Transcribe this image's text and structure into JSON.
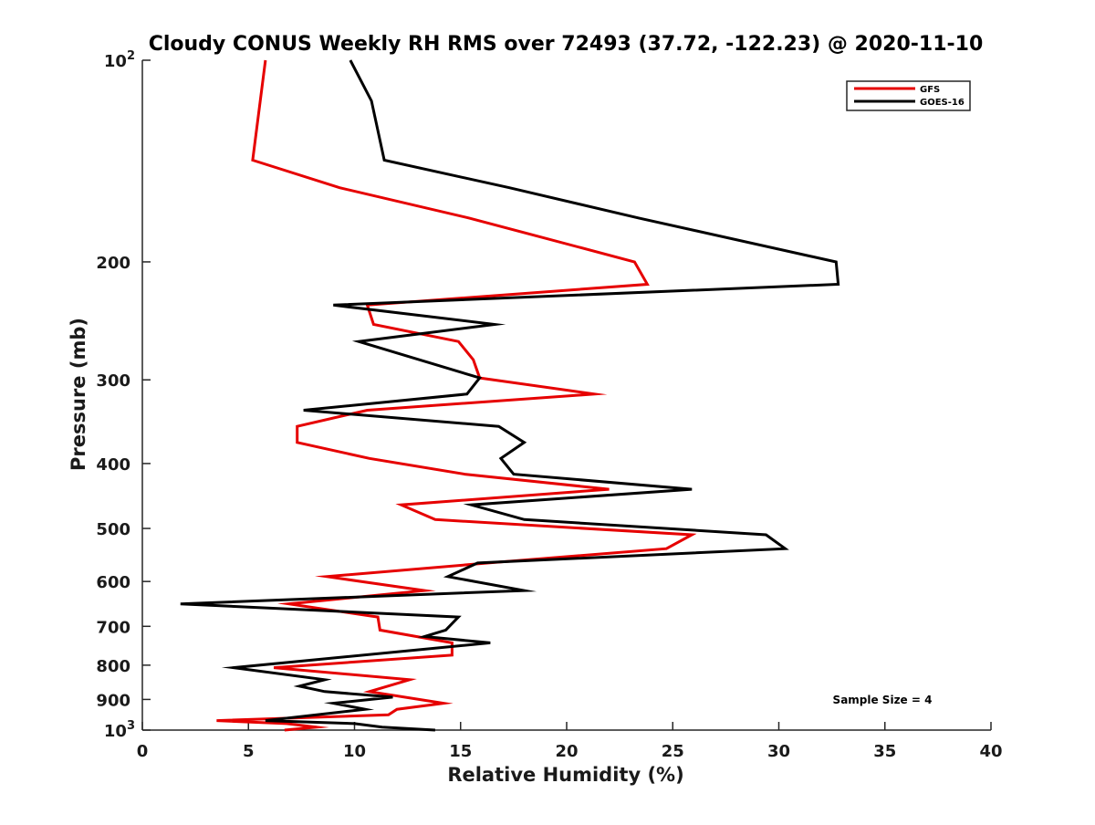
{
  "chart_data": {
    "type": "line",
    "title": "Cloudy CONUS Weekly RH RMS over 72493 (37.72, -122.23) @ 2020-11-10",
    "xlabel": "Relative Humidity (%)",
    "ylabel": "Pressure (mb)",
    "xlim": [
      0,
      40
    ],
    "ylim": [
      100,
      1000
    ],
    "y_scale": "log",
    "y_reversed": false,
    "grid": false,
    "legend_position": "top-right",
    "x_ticks": [
      {
        "value": 0,
        "label": "0"
      },
      {
        "value": 5,
        "label": "5"
      },
      {
        "value": 10,
        "label": "10"
      },
      {
        "value": 15,
        "label": "15"
      },
      {
        "value": 20,
        "label": "20"
      },
      {
        "value": 25,
        "label": "25"
      },
      {
        "value": 30,
        "label": "30"
      },
      {
        "value": 35,
        "label": "35"
      },
      {
        "value": 40,
        "label": "40"
      }
    ],
    "y_ticks": [
      {
        "value": 100,
        "base": "10",
        "exp": "2"
      },
      {
        "value": 200,
        "label": "200"
      },
      {
        "value": 300,
        "label": "300"
      },
      {
        "value": 400,
        "label": "400"
      },
      {
        "value": 500,
        "label": "500"
      },
      {
        "value": 600,
        "label": "600"
      },
      {
        "value": 700,
        "label": "700"
      },
      {
        "value": 800,
        "label": "800"
      },
      {
        "value": 900,
        "label": "900"
      },
      {
        "value": 1000,
        "base": "10",
        "exp": "3"
      }
    ],
    "annotation": "Sample Size = 4",
    "series": [
      {
        "name": "GFS",
        "color": "#e60000",
        "points": [
          [
            5.8,
            100
          ],
          [
            5.2,
            141
          ],
          [
            9.3,
            155
          ],
          [
            15.4,
            172
          ],
          [
            23.2,
            200
          ],
          [
            23.8,
            216
          ],
          [
            10.6,
            232
          ],
          [
            10.9,
            248
          ],
          [
            14.9,
            263
          ],
          [
            15.6,
            280
          ],
          [
            15.9,
            298
          ],
          [
            21.3,
            315
          ],
          [
            10.6,
            333
          ],
          [
            7.3,
            352
          ],
          [
            7.3,
            372
          ],
          [
            10.7,
            393
          ],
          [
            15.2,
            415
          ],
          [
            22.0,
            437
          ],
          [
            12.2,
            461
          ],
          [
            13.8,
            485
          ],
          [
            25.9,
            511
          ],
          [
            24.7,
            536
          ],
          [
            16.3,
            563
          ],
          [
            8.7,
            590
          ],
          [
            13.3,
            619
          ],
          [
            6.9,
            648
          ],
          [
            11.1,
            678
          ],
          [
            11.2,
            709
          ],
          [
            14.6,
            741
          ],
          [
            14.6,
            773
          ],
          [
            6.2,
            807
          ],
          [
            12.6,
            841
          ],
          [
            10.7,
            876
          ],
          [
            14.2,
            912
          ],
          [
            12.0,
            931
          ],
          [
            11.6,
            949
          ],
          [
            3.5,
            968
          ],
          [
            6.8,
            978
          ],
          [
            8.2,
            990
          ],
          [
            6.7,
            1000
          ]
        ]
      },
      {
        "name": "GOES-16",
        "color": "#000000",
        "points": [
          [
            9.8,
            100
          ],
          [
            10.8,
            115
          ],
          [
            11.4,
            141
          ],
          [
            17.3,
            155
          ],
          [
            23.4,
            172
          ],
          [
            32.7,
            200
          ],
          [
            32.8,
            216
          ],
          [
            9.0,
            232
          ],
          [
            16.6,
            248
          ],
          [
            10.2,
            263
          ],
          [
            15.9,
            298
          ],
          [
            15.3,
            315
          ],
          [
            7.6,
            333
          ],
          [
            16.8,
            352
          ],
          [
            18.0,
            372
          ],
          [
            16.9,
            393
          ],
          [
            17.5,
            415
          ],
          [
            25.9,
            437
          ],
          [
            15.5,
            461
          ],
          [
            18.0,
            485
          ],
          [
            29.4,
            511
          ],
          [
            30.3,
            536
          ],
          [
            15.8,
            563
          ],
          [
            14.4,
            590
          ],
          [
            18.0,
            619
          ],
          [
            1.8,
            648
          ],
          [
            14.9,
            678
          ],
          [
            14.3,
            709
          ],
          [
            13.3,
            725
          ],
          [
            16.4,
            741
          ],
          [
            4.3,
            807
          ],
          [
            8.6,
            841
          ],
          [
            7.4,
            860
          ],
          [
            8.6,
            876
          ],
          [
            11.8,
            893
          ],
          [
            9.0,
            912
          ],
          [
            10.5,
            931
          ],
          [
            5.8,
            968
          ],
          [
            10.0,
            978
          ],
          [
            11.3,
            990
          ],
          [
            13.8,
            1000
          ]
        ]
      }
    ]
  }
}
